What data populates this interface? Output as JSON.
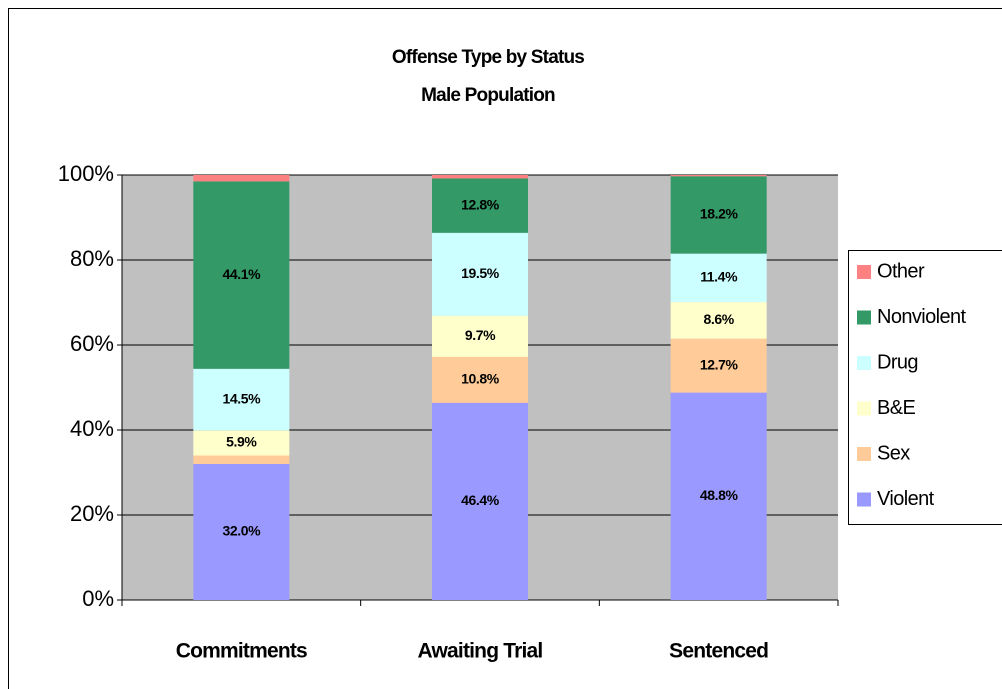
{
  "chart_data": {
    "type": "stacked_bar",
    "title": "Offense Type by Status",
    "subtitle": "Male Population",
    "categories": [
      "Commitments",
      "Awaiting Trial",
      "Sentenced"
    ],
    "series": [
      {
        "name": "Violent",
        "color": "#9999ff",
        "values": [
          32.0,
          46.4,
          48.8
        ],
        "value_labels": [
          "32.0%",
          "46.4%",
          "48.8%"
        ]
      },
      {
        "name": "Sex",
        "color": "#ffcc99",
        "values": [
          2.0,
          10.8,
          12.7
        ],
        "value_labels": [
          null,
          "10.8%",
          "12.7%"
        ]
      },
      {
        "name": "B&E",
        "color": "#ffffcc",
        "values": [
          5.9,
          9.7,
          8.6
        ],
        "value_labels": [
          "5.9%",
          "9.7%",
          "8.6%"
        ]
      },
      {
        "name": "Drug",
        "color": "#ccffff",
        "values": [
          14.5,
          19.5,
          11.4
        ],
        "value_labels": [
          "14.5%",
          "19.5%",
          "11.4%"
        ]
      },
      {
        "name": "Nonviolent",
        "color": "#339966",
        "values": [
          44.1,
          12.8,
          18.2
        ],
        "value_labels": [
          "44.1%",
          "12.8%",
          "18.2%"
        ]
      },
      {
        "name": "Other",
        "color": "#ff8080",
        "values": [
          1.5,
          0.8,
          0.3
        ]
      }
    ],
    "ylim": [
      0,
      100
    ],
    "yticks": [
      {
        "value": 0,
        "label": "0%"
      },
      {
        "value": 20,
        "label": "20%"
      },
      {
        "value": 40,
        "label": "40%"
      },
      {
        "value": 60,
        "label": "60%"
      },
      {
        "value": 80,
        "label": "80%"
      },
      {
        "value": 100,
        "label": "100%"
      }
    ],
    "grid": true,
    "legend": "right",
    "plot_background": "#c0c0c0"
  }
}
